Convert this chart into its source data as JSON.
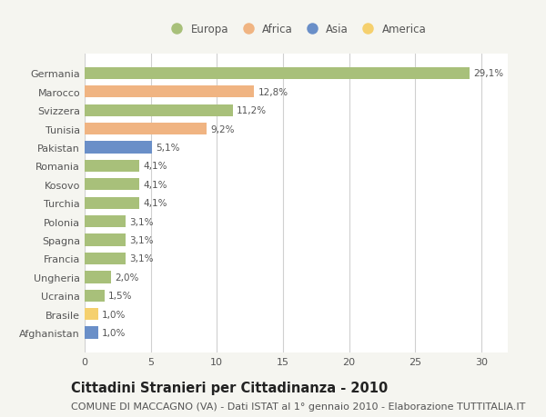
{
  "countries": [
    "Germania",
    "Marocco",
    "Svizzera",
    "Tunisia",
    "Pakistan",
    "Romania",
    "Kosovo",
    "Turchia",
    "Polonia",
    "Spagna",
    "Francia",
    "Ungheria",
    "Ucraina",
    "Brasile",
    "Afghanistan"
  ],
  "values": [
    29.1,
    12.8,
    11.2,
    9.2,
    5.1,
    4.1,
    4.1,
    4.1,
    3.1,
    3.1,
    3.1,
    2.0,
    1.5,
    1.0,
    1.0
  ],
  "labels": [
    "29,1%",
    "12,8%",
    "11,2%",
    "9,2%",
    "5,1%",
    "4,1%",
    "4,1%",
    "4,1%",
    "3,1%",
    "3,1%",
    "3,1%",
    "2,0%",
    "1,5%",
    "1,0%",
    "1,0%"
  ],
  "continents": [
    "Europa",
    "Africa",
    "Europa",
    "Africa",
    "Asia",
    "Europa",
    "Europa",
    "Europa",
    "Europa",
    "Europa",
    "Europa",
    "Europa",
    "Europa",
    "America",
    "Asia"
  ],
  "continent_colors": {
    "Europa": "#a8c07a",
    "Africa": "#f0b482",
    "Asia": "#6a8fc8",
    "America": "#f5d06e"
  },
  "legend_order": [
    "Europa",
    "Africa",
    "Asia",
    "America"
  ],
  "title": "Cittadini Stranieri per Cittadinanza - 2010",
  "subtitle": "COMUNE DI MACCAGNO (VA) - Dati ISTAT al 1° gennaio 2010 - Elaborazione TUTTITALIA.IT",
  "xlim": [
    0,
    32
  ],
  "xticks": [
    0,
    5,
    10,
    15,
    20,
    25,
    30
  ],
  "background_color": "#f5f5f0",
  "bar_background": "#ffffff",
  "grid_color": "#d0d0d0",
  "text_color": "#555555",
  "title_fontsize": 10.5,
  "subtitle_fontsize": 8.0,
  "label_fontsize": 7.5,
  "tick_fontsize": 8.0,
  "legend_fontsize": 8.5
}
